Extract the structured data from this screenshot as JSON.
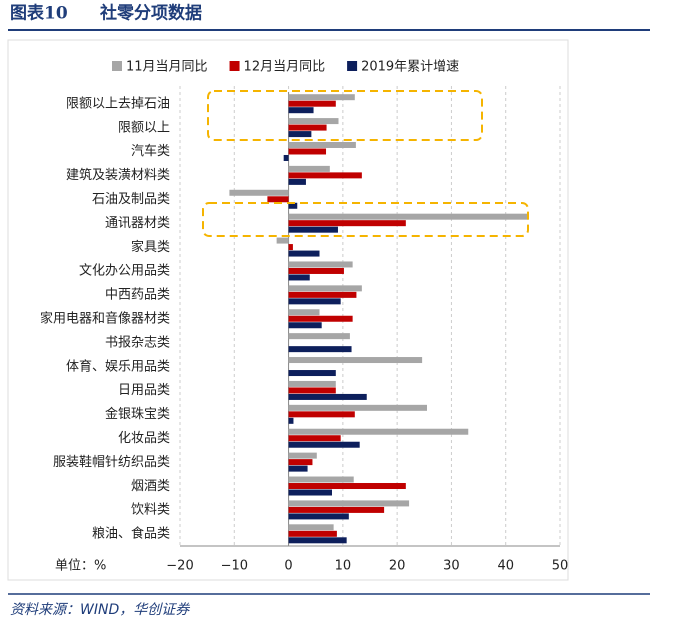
{
  "header": {
    "label": "图表10",
    "title": "社零分项数据"
  },
  "footer": {
    "source": "资料来源：WIND，华创证券"
  },
  "chart_data": {
    "type": "bar",
    "orientation": "horizontal",
    "categories": [
      "限额以上去掉石油",
      "限额以上",
      "汽车类",
      "建筑及装潢材料类",
      "石油及制品类",
      "通讯器材类",
      "家具类",
      "文化办公用品类",
      "中西药品类",
      "家用电器和音像器材类",
      "书报杂志类",
      "体育、娱乐用品类",
      "日用品类",
      "金银珠宝类",
      "化妆品类",
      "服装鞋帽针纺织品类",
      "烟酒类",
      "饮料类",
      "粮油、食品类"
    ],
    "series": [
      {
        "name": "11月当月同比",
        "color": "#a6a6a6",
        "values": [
          12.2,
          9.2,
          12.4,
          7.6,
          -10.9,
          44.2,
          -2.2,
          11.8,
          13.5,
          5.7,
          11.3,
          24.6,
          8.7,
          25.5,
          33.1,
          5.2,
          12.0,
          22.2,
          8.3
        ]
      },
      {
        "name": "12月当月同比",
        "color": "#c00000",
        "values": [
          8.7,
          7.0,
          6.9,
          13.5,
          -3.9,
          21.6,
          0.8,
          10.2,
          12.5,
          11.8,
          null,
          null,
          8.7,
          12.2,
          9.6,
          4.4,
          21.6,
          17.6,
          8.9
        ]
      },
      {
        "name": "2019年累计增速",
        "color": "#0d1f5c",
        "values": [
          4.6,
          4.2,
          -0.9,
          3.2,
          1.6,
          9.1,
          5.7,
          3.9,
          9.6,
          6.1,
          11.6,
          8.7,
          14.4,
          0.9,
          13.1,
          3.5,
          8.0,
          11.1,
          10.7
        ]
      }
    ],
    "xlim": [
      -20,
      50
    ],
    "xticks": [
      {
        "value": -20,
        "label": "−20"
      },
      {
        "value": -10,
        "label": "−10"
      },
      0,
      10,
      20,
      30,
      40,
      50
    ],
    "unit_label": "单位：%",
    "grid": true,
    "legend": "top"
  }
}
